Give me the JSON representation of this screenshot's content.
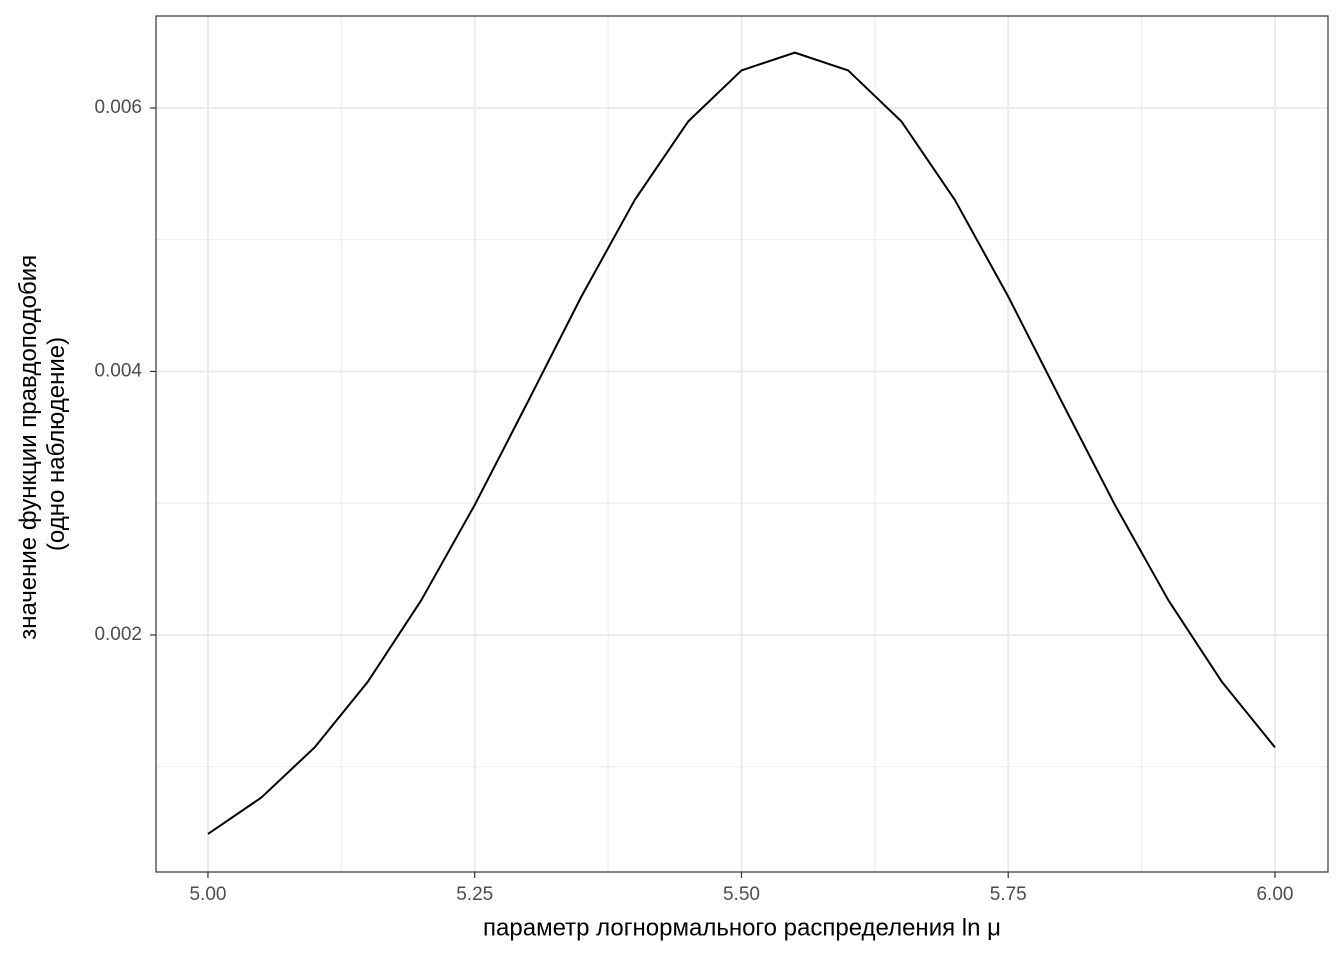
{
  "chart_data": {
    "type": "line",
    "xlabel": "параметр логнормального распределения ln μ",
    "ylabel": [
      "значение функции правдоподобия",
      "(одно наблюдение)"
    ],
    "x": [
      5.0,
      5.05,
      5.1,
      5.15,
      5.2,
      5.25,
      5.3,
      5.35,
      5.4,
      5.45,
      5.5,
      5.55,
      5.6,
      5.65,
      5.7,
      5.75,
      5.8,
      5.85,
      5.9,
      5.95,
      6.0
    ],
    "series": [
      {
        "color": "#000000",
        "values": [
          0.00049,
          0.000766,
          0.001147,
          0.001647,
          0.002265,
          0.002987,
          0.003773,
          0.004569,
          0.005302,
          0.005897,
          0.006285,
          0.00642,
          0.006285,
          0.005897,
          0.005302,
          0.004569,
          0.003773,
          0.002987,
          0.002265,
          0.001647,
          0.001147
        ]
      }
    ],
    "xlim": [
      4.9513,
      6.0497
    ],
    "ylim": [
      0.000201,
      0.006698
    ],
    "xticks": [
      {
        "value": 5,
        "label": "5.00"
      },
      {
        "value": 5.25,
        "label": "5.25"
      },
      {
        "value": 5.5,
        "label": "5.50"
      },
      {
        "value": 5.75,
        "label": "5.75"
      },
      {
        "value": 6,
        "label": "6.00"
      }
    ],
    "yticks": [
      0.002,
      0.004,
      0.006
    ],
    "x_minor_grid": [
      5.125,
      5.375,
      5.625,
      5.875
    ],
    "y_minor_grid": [
      0.001,
      0.003,
      0.005
    ],
    "grid": true
  }
}
